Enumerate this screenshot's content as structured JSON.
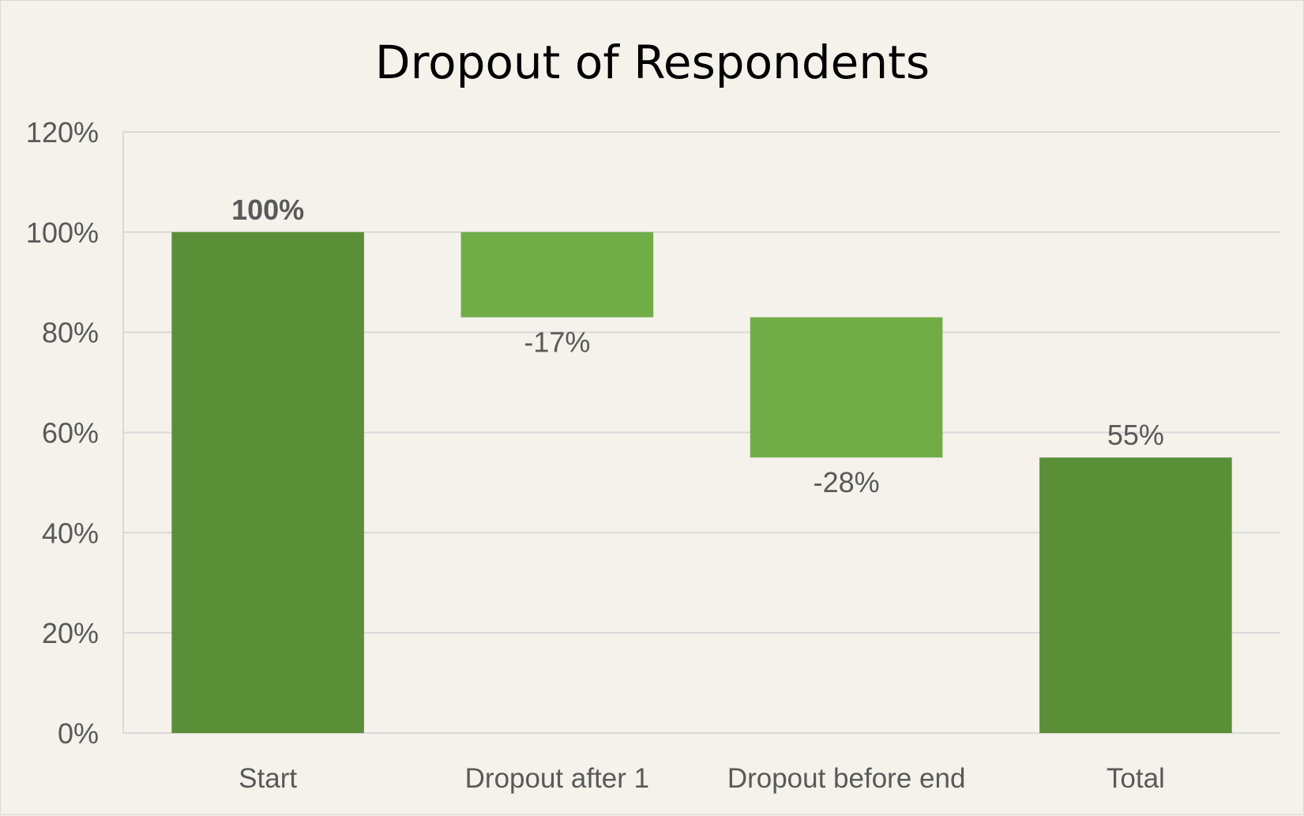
{
  "chart_data": {
    "type": "bar",
    "subtype": "waterfall",
    "title": "Dropout of Respondents",
    "xlabel": "",
    "ylabel": "",
    "categories": [
      "Start",
      "Dropout after 1",
      "Dropout before end",
      "Total"
    ],
    "values": [
      100,
      -17,
      -28,
      55
    ],
    "bar_kinds": [
      "total",
      "change",
      "change",
      "total"
    ],
    "data_labels": [
      "100%",
      "-17%",
      "-28%",
      "55%"
    ],
    "ylim": [
      0,
      120
    ],
    "y_ticks": [
      0,
      20,
      40,
      60,
      80,
      100,
      120
    ],
    "y_tick_labels": [
      "0%",
      "20%",
      "40%",
      "60%",
      "80%",
      "100%",
      "120%"
    ],
    "grid": true,
    "legend": "none",
    "colors": {
      "total": "#5a8f37",
      "change": "#70ad47",
      "gridline": "#d9d9d9",
      "background": "#f5f1eb",
      "text": "#595959"
    }
  }
}
